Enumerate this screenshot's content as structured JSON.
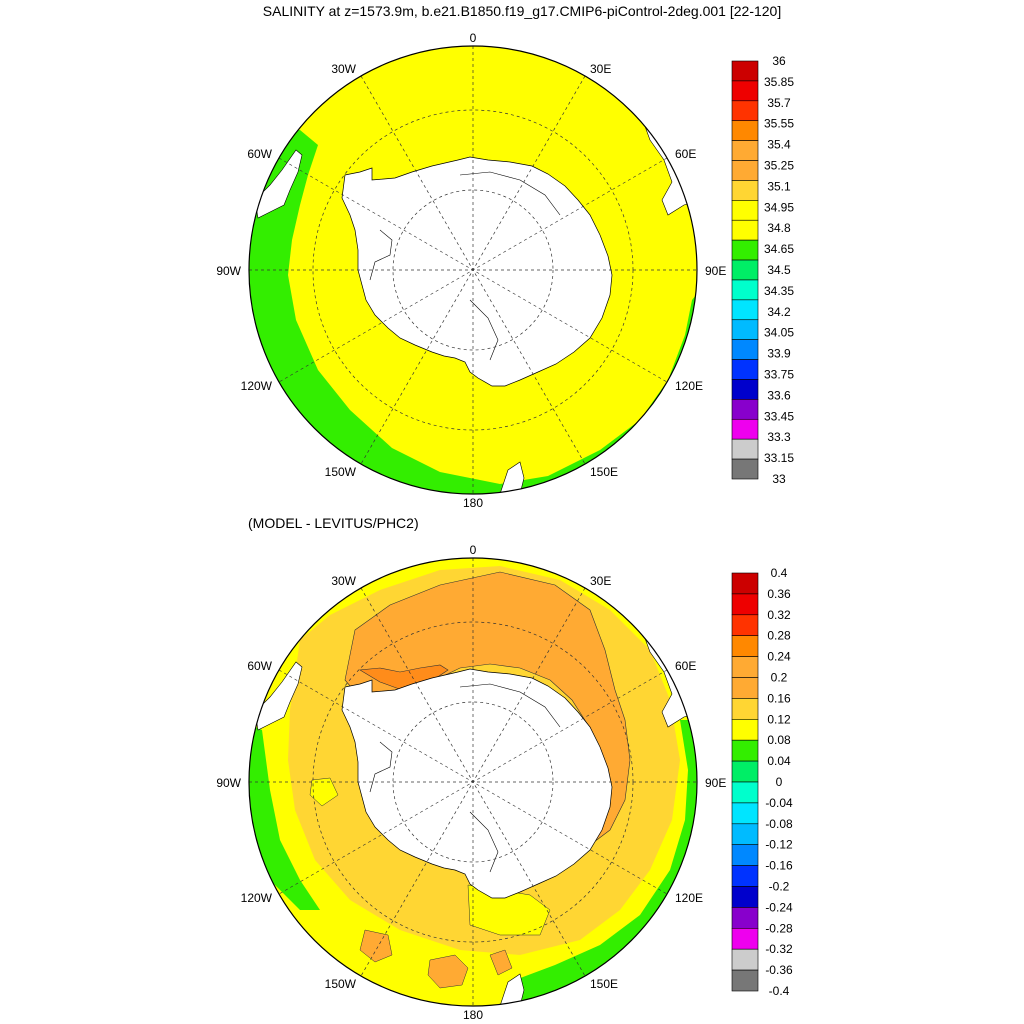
{
  "title": "SALINITY at z=1573.9m, b.e21.B1850.f19_g17.CMIP6-piControl-2deg.001 [22-120]",
  "diff_title": "(MODEL - LEVITUS/PHC2)",
  "longitude_labels": {
    "top": "0",
    "bottom": "180",
    "left": "90W",
    "right": "90E",
    "upper_left": "30W",
    "upper_right": "30E",
    "mid_left": "60W",
    "mid_right": "60E",
    "lower_left": "120W",
    "lower_right": "120E",
    "bottom_left": "150W",
    "bottom_right": "150E"
  },
  "colors": {
    "land": "#ffffff",
    "salinity_main": "#ffff00",
    "salinity_low": "#33ee00",
    "diff_low_pos": "#ffd633",
    "diff_mid_pos": "#ffaa33",
    "diff_high_pos": "#ff8c1a",
    "diff_yellow": "#ffff00",
    "diff_green": "#33ee00"
  },
  "colorbar_salinity": {
    "labels": [
      "36",
      "35.85",
      "35.7",
      "35.55",
      "35.4",
      "35.25",
      "35.1",
      "34.95",
      "34.8",
      "34.65",
      "34.5",
      "34.35",
      "34.2",
      "34.05",
      "33.9",
      "33.75",
      "33.6",
      "33.45",
      "33.3",
      "33.15",
      "33"
    ],
    "colors": [
      "#cc0000",
      "#ee0000",
      "#ff3300",
      "#ff8800",
      "#ffaa33",
      "#ffaa33",
      "#ffd633",
      "#ffff00",
      "#ffff00",
      "#33ee00",
      "#00ee66",
      "#00ffcc",
      "#00e5ff",
      "#00bbff",
      "#0088ff",
      "#0033ff",
      "#0000cc",
      "#8800cc",
      "#ee00ee",
      "#cccccc",
      "#777777"
    ]
  },
  "colorbar_diff": {
    "labels": [
      "0.4",
      "0.36",
      "0.32",
      "0.28",
      "0.24",
      "0.2",
      "0.16",
      "0.12",
      "0.08",
      "0.04",
      "0",
      "-0.04",
      "-0.08",
      "-0.12",
      "-0.16",
      "-0.2",
      "-0.24",
      "-0.28",
      "-0.32",
      "-0.36",
      "-0.4"
    ],
    "colors": [
      "#cc0000",
      "#ee0000",
      "#ff3300",
      "#ff8800",
      "#ffaa33",
      "#ffaa33",
      "#ffd633",
      "#ffff00",
      "#33ee00",
      "#00ee66",
      "#00ffcc",
      "#00e5ff",
      "#00bbff",
      "#0088ff",
      "#0033ff",
      "#0000cc",
      "#8800cc",
      "#ee00ee",
      "#cccccc",
      "#777777"
    ]
  }
}
